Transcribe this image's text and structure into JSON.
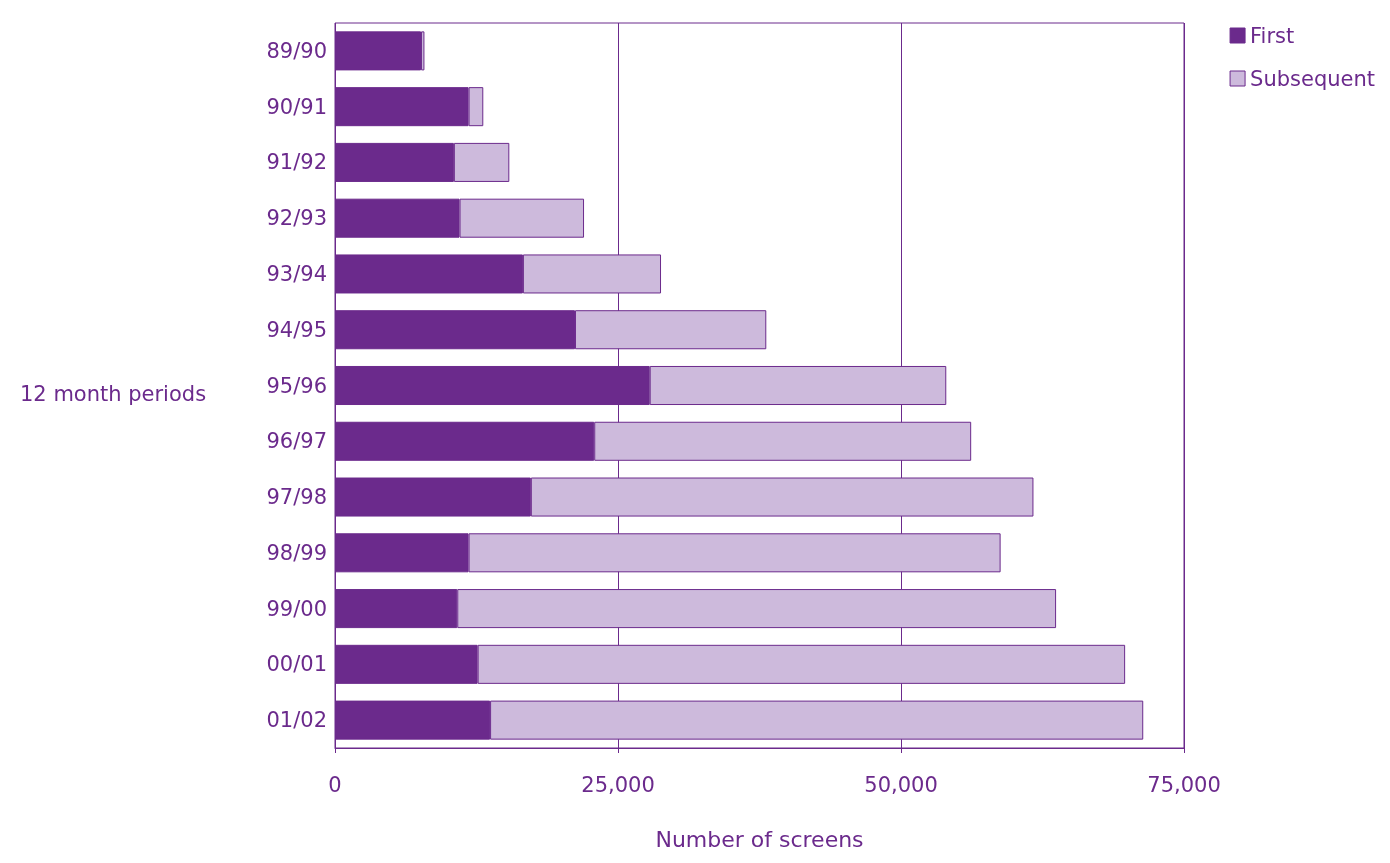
{
  "chart_data": {
    "type": "bar",
    "orientation": "horizontal",
    "stacked": true,
    "xlabel": "Number of screens",
    "ylabel": "12 month periods",
    "categories": [
      "89/90",
      "90/91",
      "91/92",
      "92/93",
      "93/94",
      "94/95",
      "95/96",
      "96/97",
      "97/98",
      "98/99",
      "99/00",
      "00/01",
      "01/02"
    ],
    "series": [
      {
        "name": "First",
        "color": "#6b2a8c",
        "values": [
          7600,
          11800,
          10500,
          11000,
          16600,
          21200,
          27800,
          22900,
          17300,
          11800,
          10800,
          12600,
          13700
        ]
      },
      {
        "name": "Subsequent",
        "color": "#cdbadc",
        "values": [
          300,
          1300,
          4900,
          11000,
          12200,
          16900,
          26200,
          33300,
          44400,
          47000,
          52900,
          57200,
          57700
        ]
      }
    ],
    "xlim": [
      0,
      75000
    ],
    "xticks": [
      0,
      {
        "value": 25000,
        "label": "25,000"
      },
      {
        "value": 50000,
        "label": "50,000"
      },
      {
        "value": 75000,
        "label": "75,000"
      }
    ],
    "grid": "x",
    "legend": "top right"
  }
}
